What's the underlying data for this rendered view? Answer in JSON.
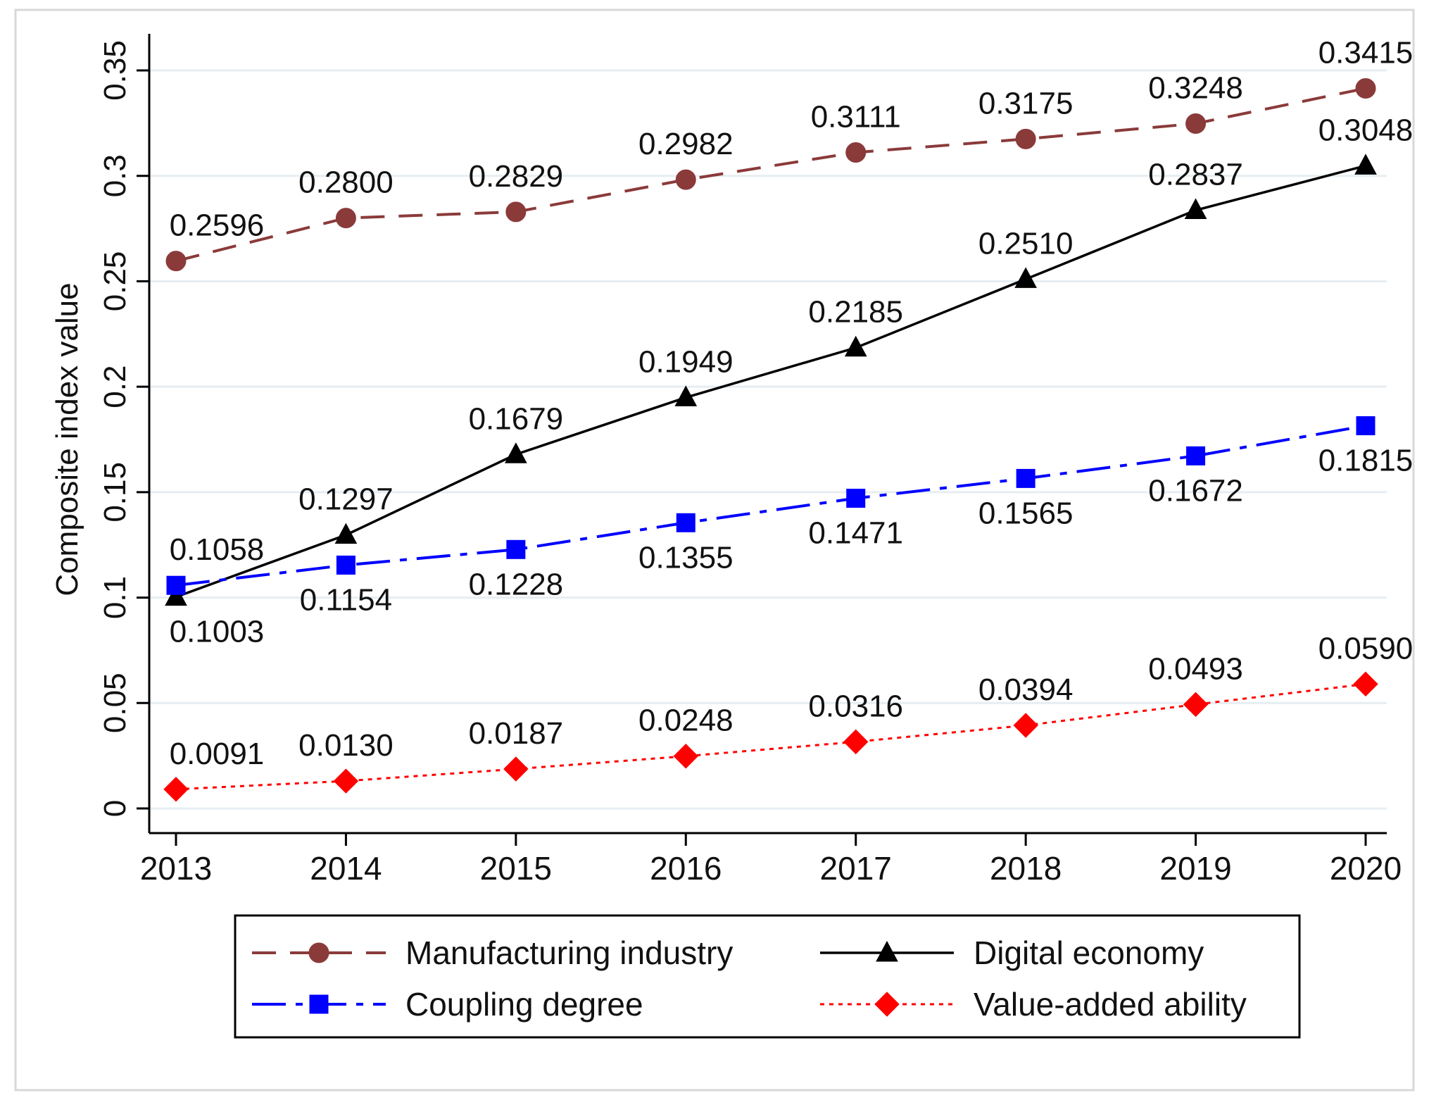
{
  "chart_data": {
    "type": "line",
    "title": "",
    "xlabel": "",
    "ylabel": "Composite index value",
    "ylim": [
      0,
      0.35
    ],
    "x": [
      2013,
      2014,
      2015,
      2016,
      2017,
      2018,
      2019,
      2020
    ],
    "x_tick_labels": [
      "2013",
      "2014",
      "2015",
      "2016",
      "2017",
      "2018",
      "2019",
      "2020"
    ],
    "y_ticks": [
      0,
      0.05,
      0.1,
      0.15,
      0.2,
      0.25,
      0.3,
      0.35
    ],
    "y_tick_labels": [
      "0",
      "0.05",
      "0.1",
      "0.15",
      "0.2",
      "0.25",
      "0.3",
      "0.35"
    ],
    "grid": true,
    "legend_position": "bottom",
    "series": [
      {
        "name": "Manufacturing industry",
        "color": "#8b3a3a",
        "line_style": "dashed",
        "marker": "circle",
        "values": [
          0.2596,
          0.28,
          0.2829,
          0.2982,
          0.3111,
          0.3175,
          0.3248,
          0.3415
        ],
        "labels": [
          "0.2596",
          "0.2800",
          "0.2829",
          "0.2982",
          "0.3111",
          "0.3175",
          "0.3248",
          "0.3415"
        ],
        "label_side": [
          "above",
          "above",
          "above",
          "above",
          "above",
          "above",
          "above",
          "above"
        ]
      },
      {
        "name": "Digital economy",
        "color": "#000000",
        "line_style": "solid",
        "marker": "triangle",
        "values": [
          0.1003,
          0.1297,
          0.1679,
          0.1949,
          0.2185,
          0.251,
          0.2837,
          0.3048
        ],
        "labels": [
          "0.1003",
          "0.1297",
          "0.1679",
          "0.1949",
          "0.2185",
          "0.2510",
          "0.2837",
          "0.3048"
        ],
        "label_side": [
          "below",
          "above",
          "above",
          "above",
          "above",
          "above",
          "above",
          "above"
        ]
      },
      {
        "name": "Coupling degree",
        "color": "#0000ff",
        "line_style": "dashdot",
        "marker": "square",
        "values": [
          0.1058,
          0.1154,
          0.1228,
          0.1355,
          0.1471,
          0.1565,
          0.1672,
          0.1815
        ],
        "labels": [
          "0.1058",
          "0.1154",
          "0.1228",
          "0.1355",
          "0.1471",
          "0.1565",
          "0.1672",
          "0.1815"
        ],
        "label_side": [
          "above",
          "below",
          "below",
          "below",
          "below",
          "below",
          "below",
          "below"
        ]
      },
      {
        "name": "Value-added ability",
        "color": "#ff0000",
        "line_style": "dotted",
        "marker": "diamond",
        "values": [
          0.0091,
          0.013,
          0.0187,
          0.0248,
          0.0316,
          0.0394,
          0.0493,
          0.059
        ],
        "labels": [
          "0.0091",
          "0.0130",
          "0.0187",
          "0.0248",
          "0.0316",
          "0.0394",
          "0.0493",
          "0.0590"
        ],
        "label_side": [
          "above",
          "above",
          "above",
          "above",
          "above",
          "above",
          "above",
          "above"
        ]
      }
    ],
    "legend_order": [
      "Manufacturing industry",
      "Digital economy",
      "Coupling degree",
      "Value-added ability"
    ]
  }
}
